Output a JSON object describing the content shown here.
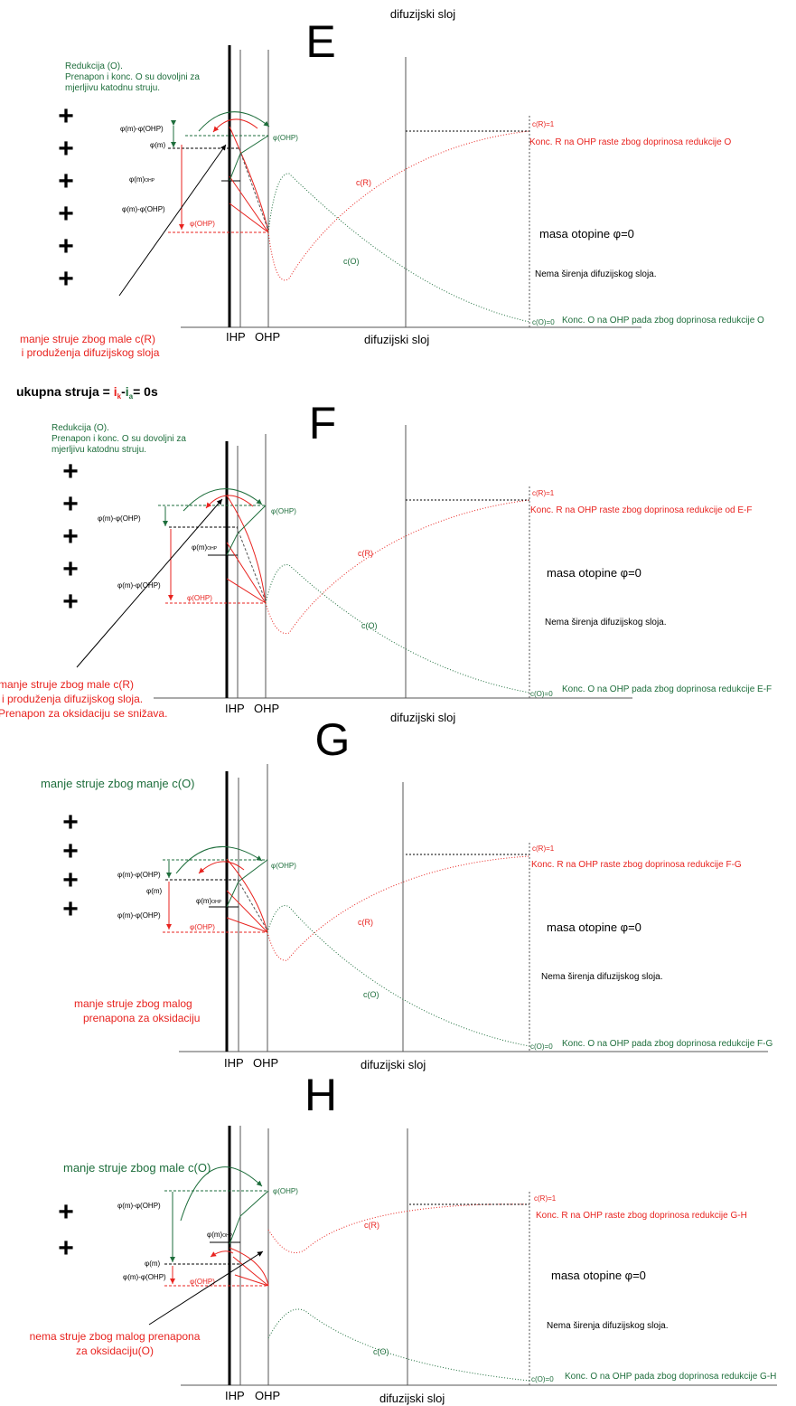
{
  "colors": {
    "red": "#e8231f",
    "green": "#1e6e3c",
    "black": "#000000",
    "gray": "#555555"
  },
  "header": {
    "top_title": "difuzijski sloj"
  },
  "common": {
    "ihp": "IHP",
    "ohp": "OHP",
    "layer_axis": "difuzijski sloj",
    "cr1": "c(R)=1",
    "co0": "c(O)=0",
    "cR": "c(R)",
    "cO": "c(O)",
    "phi_m": "φ(m)",
    "phi_ohp": "φ(OHP)",
    "phi_m_ohp": "φ(m)-φ(OHP)",
    "phi_m_sub": "φ(m)",
    "sub": "OHP",
    "bulk": "masa otopine φ=0",
    "no_spread": "Nema širenja difuzijskog sloja."
  },
  "panels": {
    "E": {
      "letter": "E",
      "reduction_1": "Redukcija (O).",
      "reduction_2": "Prenapon i konc. O  su dovoljni za",
      "reduction_3": "mjerljivu katodnu struju.",
      "note_1": "manje struje zbog male c(R)",
      "note_2": "i produženja difuzijskog sloja",
      "konc_r": "Konc. R  na OHP raste  zbog doprinosa redukcije O",
      "konc_o": "Konc. O na OHP pada zbog doprinosa redukcije O",
      "plus_count": 6
    },
    "total_current": {
      "prefix": "ukupna struja = ",
      "ik": "i",
      "ik_sub": "k",
      "minus": "-",
      "ia": "i",
      "ia_sub": "a",
      "suffix": "= 0s"
    },
    "F": {
      "letter": "F",
      "reduction_1": "Redukcija (O).",
      "reduction_2": "Prenapon i konc. O  su dovoljni za",
      "reduction_3": "mjerljivu katodnu struju.",
      "note_1": "manje struje zbog male c(R)",
      "note_2": "i produženja difuzijskog sloja.",
      "note_3": "Prenapon za oksidaciju se snižava.",
      "konc_r": "Konc. R  na OHP raste  zbog doprinosa redukcije od E-F",
      "konc_o": "Konc. O na OHP pada zbog doprinosa redukcije E-F",
      "plus_count": 5
    },
    "G": {
      "letter": "G",
      "green_note": "manje struje zbog manje c(O)",
      "note_1": "manje struje zbog malog",
      "note_2": "prenapona za oksidaciju",
      "konc_r": "Konc. R  na OHP raste  zbog doprinosa redukcije F-G",
      "konc_o": "Konc. O na OHP pada zbog doprinosa redukcije F-G",
      "plus_count": 4
    },
    "H": {
      "letter": "H",
      "green_note": "manje struje zbog male c(O)",
      "note_1": "nema struje zbog malog prenapona",
      "note_2": "za oksidaciju(O)",
      "konc_r": "Konc. R  na OHP raste  zbog doprinosa redukcije G-H",
      "konc_o": "Konc. O na OHP pada zbog doprinosa redukcije G-H",
      "layer_axis": "difuzijski  sloj",
      "plus_count": 2
    }
  }
}
